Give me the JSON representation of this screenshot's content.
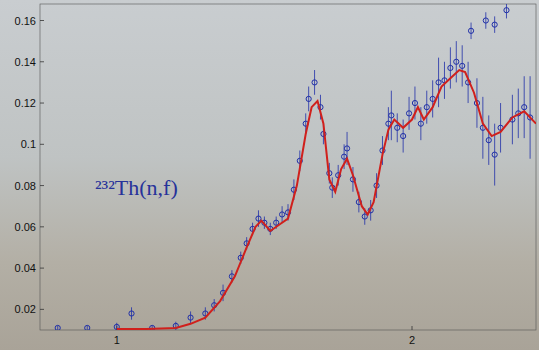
{
  "chart_data": {
    "type": "scatter",
    "annotation": "²³²Th(n,f)",
    "xlim": [
      0.74,
      2.42
    ],
    "ylim": [
      0.01,
      0.168
    ],
    "xticks": [
      1,
      2
    ],
    "yticks": [
      0.02,
      0.04,
      0.06,
      0.08,
      0.1,
      0.12,
      0.14,
      0.16
    ],
    "series": [
      {
        "type": "scatter",
        "color": "#1f2fa8",
        "marker": "circle",
        "x": [
          0.8,
          0.9,
          1.0,
          1.05,
          1.12,
          1.2,
          1.25,
          1.3,
          1.33,
          1.36,
          1.39,
          1.42,
          1.44,
          1.46,
          1.48,
          1.5,
          1.52,
          1.54,
          1.56,
          1.58,
          1.6,
          1.62,
          1.64,
          1.65,
          1.67,
          1.69,
          1.7,
          1.72,
          1.73,
          1.75,
          1.77,
          1.78,
          1.8,
          1.82,
          1.84,
          1.86,
          1.88,
          1.9,
          1.92,
          1.93,
          1.95,
          1.97,
          1.99,
          2.01,
          2.03,
          2.05,
          2.07,
          2.09,
          2.11,
          2.13,
          2.15,
          2.17,
          2.19,
          2.2,
          2.22,
          2.24,
          2.25,
          2.26,
          2.28,
          2.28,
          2.3,
          2.32,
          2.34,
          2.36,
          2.38,
          2.4
        ],
        "values": [
          0.011,
          0.011,
          0.0115,
          0.018,
          0.011,
          0.012,
          0.016,
          0.018,
          0.022,
          0.028,
          0.036,
          0.045,
          0.052,
          0.059,
          0.064,
          0.062,
          0.059,
          0.062,
          0.066,
          0.067,
          0.078,
          0.092,
          0.11,
          0.122,
          0.13,
          0.118,
          0.105,
          0.086,
          0.079,
          0.085,
          0.094,
          0.098,
          0.083,
          0.072,
          0.065,
          0.068,
          0.08,
          0.097,
          0.11,
          0.114,
          0.108,
          0.104,
          0.115,
          0.12,
          0.11,
          0.118,
          0.122,
          0.13,
          0.131,
          0.137,
          0.14,
          0.138,
          0.13,
          0.155,
          0.12,
          0.108,
          0.16,
          0.102,
          0.095,
          0.158,
          0.108,
          0.165,
          0.112,
          0.115,
          0.118,
          0.113
        ],
        "errors": [
          0.001,
          0.001,
          0.002,
          0.003,
          0.001,
          0.002,
          0.003,
          0.003,
          0.003,
          0.004,
          0.003,
          0.003,
          0.003,
          0.003,
          0.004,
          0.003,
          0.003,
          0.003,
          0.004,
          0.004,
          0.005,
          0.005,
          0.005,
          0.006,
          0.006,
          0.006,
          0.005,
          0.005,
          0.005,
          0.005,
          0.006,
          0.008,
          0.006,
          0.005,
          0.004,
          0.005,
          0.006,
          0.007,
          0.008,
          0.012,
          0.007,
          0.008,
          0.008,
          0.008,
          0.008,
          0.008,
          0.009,
          0.012,
          0.009,
          0.01,
          0.01,
          0.01,
          0.01,
          0.004,
          0.012,
          0.015,
          0.004,
          0.012,
          0.015,
          0.004,
          0.012,
          0.004,
          0.012,
          0.012,
          0.015,
          0.02
        ]
      },
      {
        "type": "line",
        "color": "#d0201c",
        "line_style": "solid",
        "x": [
          1.0,
          1.1,
          1.2,
          1.25,
          1.3,
          1.35,
          1.4,
          1.44,
          1.47,
          1.49,
          1.52,
          1.55,
          1.58,
          1.61,
          1.64,
          1.66,
          1.68,
          1.7,
          1.72,
          1.74,
          1.76,
          1.78,
          1.8,
          1.83,
          1.85,
          1.87,
          1.9,
          1.92,
          1.94,
          1.97,
          2.0,
          2.02,
          2.04,
          2.07,
          2.1,
          2.13,
          2.16,
          2.18,
          2.21,
          2.24,
          2.27,
          2.3,
          2.34,
          2.38,
          2.42
        ],
        "values": [
          0.0105,
          0.0105,
          0.011,
          0.013,
          0.016,
          0.024,
          0.036,
          0.05,
          0.06,
          0.063,
          0.058,
          0.061,
          0.064,
          0.08,
          0.105,
          0.118,
          0.121,
          0.11,
          0.083,
          0.077,
          0.088,
          0.093,
          0.085,
          0.07,
          0.066,
          0.072,
          0.095,
          0.107,
          0.112,
          0.108,
          0.112,
          0.118,
          0.112,
          0.118,
          0.128,
          0.132,
          0.136,
          0.135,
          0.125,
          0.11,
          0.104,
          0.106,
          0.113,
          0.116,
          0.11
        ]
      }
    ]
  }
}
